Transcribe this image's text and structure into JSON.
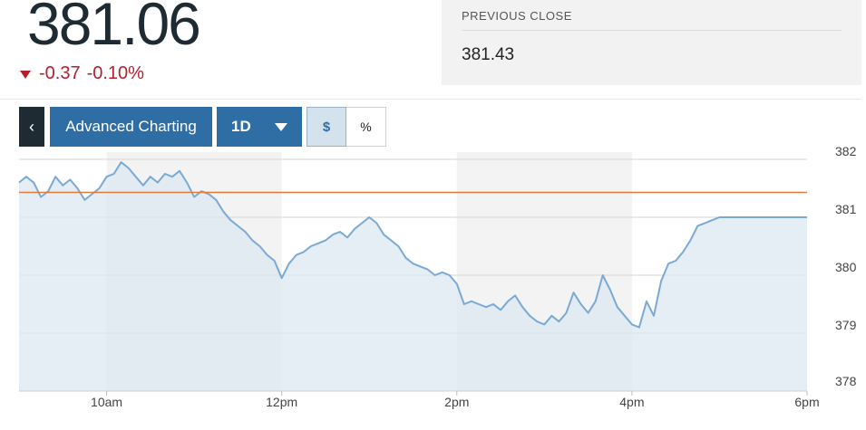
{
  "quote": {
    "price": "381.06",
    "change": "-0.37",
    "change_pct": "-0.10%",
    "change_color": "#b21f2d",
    "direction_icon": "down-triangle-icon"
  },
  "previous_close": {
    "label": "PREVIOUS CLOSE",
    "value": "381.43"
  },
  "toolbar": {
    "back_label": "‹",
    "advanced_label": "Advanced Charting",
    "range_label": "1D",
    "dollar_label": "$",
    "percent_label": "%",
    "active_mode": "$"
  },
  "chart_data": {
    "type": "area",
    "title": "",
    "xlabel": "",
    "ylabel": "",
    "x_ticks": [
      "10am",
      "12pm",
      "2pm",
      "4pm",
      "6pm"
    ],
    "y_ticks": [
      "382",
      "381",
      "380",
      "379",
      "378"
    ],
    "ylim": [
      378,
      382
    ],
    "y_axis_side": "right",
    "grid": true,
    "reference_line": {
      "value": 381.43,
      "color": "#e07b39"
    },
    "line_color": "#7aaad4",
    "fill_color": "#dce7f1",
    "series": [
      {
        "values": [
          [
            "9:00",
            381.6
          ],
          [
            "9:05",
            381.7
          ],
          [
            "9:10",
            381.6
          ],
          [
            "9:15",
            381.35
          ],
          [
            "9:20",
            381.45
          ],
          [
            "9:25",
            381.7
          ],
          [
            "9:30",
            381.55
          ],
          [
            "9:35",
            381.65
          ],
          [
            "9:40",
            381.5
          ],
          [
            "9:45",
            381.3
          ],
          [
            "9:50",
            381.4
          ],
          [
            "9:55",
            381.5
          ],
          [
            "10:00",
            381.7
          ],
          [
            "10:05",
            381.75
          ],
          [
            "10:10",
            381.95
          ],
          [
            "10:15",
            381.85
          ],
          [
            "10:20",
            381.7
          ],
          [
            "10:25",
            381.55
          ],
          [
            "10:30",
            381.7
          ],
          [
            "10:35",
            381.6
          ],
          [
            "10:40",
            381.75
          ],
          [
            "10:45",
            381.7
          ],
          [
            "10:50",
            381.8
          ],
          [
            "10:55",
            381.6
          ],
          [
            "11:00",
            381.35
          ],
          [
            "11:05",
            381.45
          ],
          [
            "11:10",
            381.4
          ],
          [
            "11:15",
            381.3
          ],
          [
            "11:20",
            381.1
          ],
          [
            "11:25",
            380.95
          ],
          [
            "11:30",
            380.85
          ],
          [
            "11:35",
            380.75
          ],
          [
            "11:40",
            380.6
          ],
          [
            "11:45",
            380.5
          ],
          [
            "11:50",
            380.35
          ],
          [
            "11:55",
            380.25
          ],
          [
            "12:00",
            379.95
          ],
          [
            "12:05",
            380.2
          ],
          [
            "12:10",
            380.35
          ],
          [
            "12:15",
            380.4
          ],
          [
            "12:20",
            380.5
          ],
          [
            "12:25",
            380.55
          ],
          [
            "12:30",
            380.6
          ],
          [
            "12:35",
            380.7
          ],
          [
            "12:40",
            380.75
          ],
          [
            "12:45",
            380.65
          ],
          [
            "12:50",
            380.8
          ],
          [
            "12:55",
            380.9
          ],
          [
            "13:00",
            381.0
          ],
          [
            "13:05",
            380.9
          ],
          [
            "13:10",
            380.7
          ],
          [
            "13:15",
            380.6
          ],
          [
            "13:20",
            380.5
          ],
          [
            "13:25",
            380.3
          ],
          [
            "13:30",
            380.2
          ],
          [
            "13:35",
            380.15
          ],
          [
            "13:40",
            380.1
          ],
          [
            "13:45",
            380.0
          ],
          [
            "13:50",
            380.05
          ],
          [
            "13:55",
            380.0
          ],
          [
            "14:00",
            379.85
          ],
          [
            "14:05",
            379.5
          ],
          [
            "14:10",
            379.55
          ],
          [
            "14:15",
            379.5
          ],
          [
            "14:20",
            379.45
          ],
          [
            "14:25",
            379.5
          ],
          [
            "14:30",
            379.4
          ],
          [
            "14:35",
            379.55
          ],
          [
            "14:40",
            379.65
          ],
          [
            "14:45",
            379.45
          ],
          [
            "14:50",
            379.3
          ],
          [
            "14:55",
            379.2
          ],
          [
            "15:00",
            379.15
          ],
          [
            "15:05",
            379.3
          ],
          [
            "15:10",
            379.2
          ],
          [
            "15:15",
            379.35
          ],
          [
            "15:20",
            379.7
          ],
          [
            "15:25",
            379.5
          ],
          [
            "15:30",
            379.35
          ],
          [
            "15:35",
            379.55
          ],
          [
            "15:40",
            380.0
          ],
          [
            "15:45",
            379.75
          ],
          [
            "15:50",
            379.45
          ],
          [
            "15:55",
            379.3
          ],
          [
            "16:00",
            379.15
          ],
          [
            "16:05",
            379.1
          ],
          [
            "16:10",
            379.55
          ],
          [
            "16:15",
            379.3
          ],
          [
            "16:20",
            379.9
          ],
          [
            "16:25",
            380.2
          ],
          [
            "16:30",
            380.25
          ],
          [
            "16:35",
            380.4
          ],
          [
            "16:40",
            380.6
          ],
          [
            "16:45",
            380.85
          ],
          [
            "16:50",
            380.9
          ],
          [
            "16:55",
            380.95
          ],
          [
            "17:00",
            381.0
          ],
          [
            "17:30",
            381.0
          ],
          [
            "18:00",
            381.0
          ]
        ]
      }
    ]
  }
}
